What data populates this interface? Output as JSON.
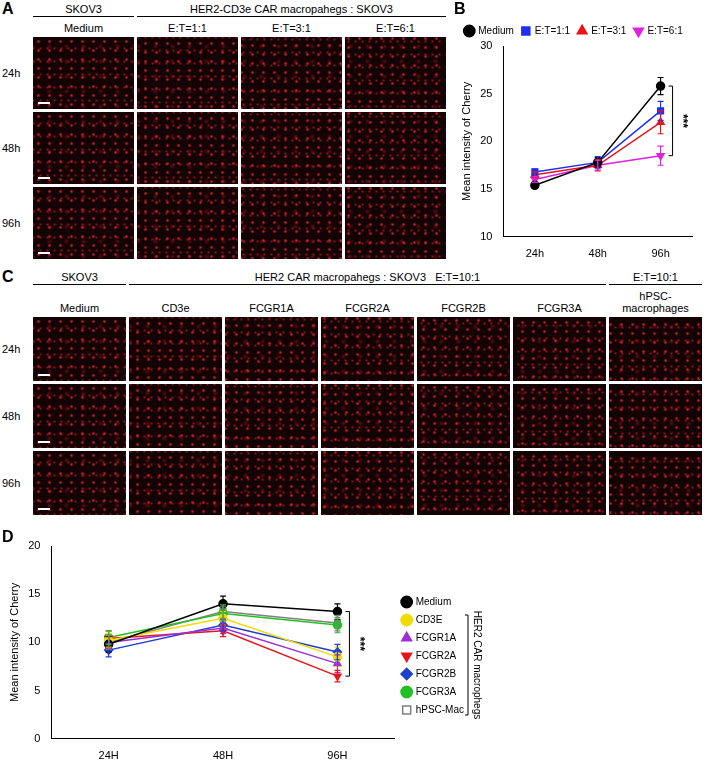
{
  "figure": {
    "panels": [
      {
        "letter": "A",
        "group_headers": [
          {
            "text": "SKOV3",
            "span": 1
          },
          {
            "text": "HER2-CD3e CAR macropahegs : SKOV3",
            "span": 3
          }
        ],
        "column_headers": [
          "Medium",
          "E:T=1:1",
          "E:T=3:1",
          "E:T=6:1"
        ],
        "row_labels": [
          "24h",
          "48h",
          "96h"
        ]
      },
      {
        "letter": "C",
        "group_headers": [
          {
            "text": "SKOV3",
            "span": 1
          },
          {
            "text": "HER2 CAR macropahegs : SKOV3   E:T=10:1",
            "span": 5
          },
          {
            "text": "E:T=10:1",
            "span": 1
          }
        ],
        "column_headers": [
          "Medium",
          "CD3e",
          "FCGR1A",
          "FCGR2A",
          "FCGR2B",
          "FCGR3A",
          "hPSC-macrophages"
        ],
        "row_labels": [
          "24h",
          "48h",
          "96h"
        ]
      }
    ]
  },
  "chart_data": [
    {
      "panel": "B",
      "type": "line",
      "categories": [
        "24h",
        "48h",
        "96h"
      ],
      "y_label": "Mean intensity of Cherry",
      "ylim": [
        10,
        30
      ],
      "yticks": [
        10,
        15,
        20,
        25,
        30
      ],
      "grid": false,
      "legend": "top",
      "series": [
        {
          "name": "Medium",
          "color": "#000000",
          "marker": "circle",
          "values": [
            15.4,
            17.8,
            25.8
          ],
          "errors": [
            0.3,
            0.5,
            0.9
          ]
        },
        {
          "name": "E:T=1:1",
          "color": "#1f2ff0",
          "marker": "square",
          "values": [
            16.8,
            17.8,
            23.2
          ],
          "errors": [
            0.3,
            0.6,
            1.0
          ]
        },
        {
          "name": "E:T=3:1",
          "color": "#e8141c",
          "marker": "triangle",
          "values": [
            16.5,
            17.5,
            22.0
          ],
          "errors": [
            0.3,
            0.6,
            1.2
          ]
        },
        {
          "name": "E:T=6:1",
          "color": "#e020e0",
          "marker": "triangle-down",
          "values": [
            16.0,
            17.5,
            18.5
          ],
          "errors": [
            0.3,
            0.5,
            1.0
          ]
        }
      ],
      "annotations": [
        {
          "text": "***",
          "x": "96h",
          "from": "Medium",
          "to": "E:T=6:1"
        }
      ]
    },
    {
      "panel": "D",
      "type": "line",
      "categories": [
        "24H",
        "48H",
        "96H"
      ],
      "y_label": "Mean intensity of Cherry",
      "ylim": [
        0,
        20
      ],
      "yticks": [
        0,
        5,
        10,
        15,
        20
      ],
      "grid": false,
      "legend": "right",
      "legend_group": {
        "label": "HER2 CAR macrophegs",
        "members": [
          "CD3E",
          "FCGR1A",
          "FCGR2A",
          "FCGR2B",
          "FCGR3A",
          "hPSC-Mac"
        ]
      },
      "series": [
        {
          "name": "Medium",
          "color": "#000000",
          "marker": "circle",
          "values": [
            9.8,
            14.0,
            13.2
          ],
          "errors": [
            0.8,
            0.8,
            0.8
          ]
        },
        {
          "name": "CD3E",
          "color": "#f2dc00",
          "marker": "circle",
          "values": [
            10.2,
            12.5,
            8.5
          ],
          "errors": [
            0.7,
            0.7,
            1.0
          ]
        },
        {
          "name": "FCGR1A",
          "color": "#9b30d9",
          "marker": "triangle",
          "values": [
            10.0,
            11.5,
            7.8
          ],
          "errors": [
            0.7,
            0.6,
            0.9
          ]
        },
        {
          "name": "FCGR2A",
          "color": "#e8141c",
          "marker": "triangle-down",
          "values": [
            10.4,
            11.2,
            6.5
          ],
          "errors": [
            0.8,
            0.6,
            0.6
          ]
        },
        {
          "name": "FCGR2B",
          "color": "#1f3fcf",
          "marker": "diamond",
          "values": [
            9.2,
            11.8,
            9.0
          ],
          "errors": [
            0.7,
            0.6,
            0.8
          ]
        },
        {
          "name": "FCGR3A",
          "color": "#22c022",
          "marker": "circle",
          "values": [
            10.5,
            13.0,
            11.8
          ],
          "errors": [
            0.7,
            0.7,
            0.8
          ]
        },
        {
          "name": "hPSC-Mac",
          "color": "#808080",
          "marker": "square-open",
          "values": [
            10.0,
            13.2,
            12.0
          ],
          "errors": [
            0.7,
            0.7,
            0.8
          ]
        }
      ],
      "annotations": [
        {
          "text": "***",
          "x": "96H",
          "from": "Medium",
          "to": "FCGR2A"
        }
      ]
    }
  ]
}
